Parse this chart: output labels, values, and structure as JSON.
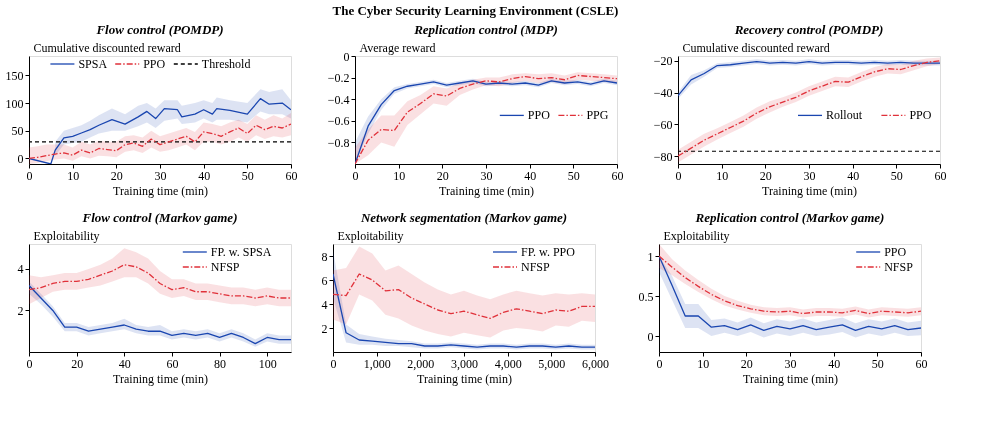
{
  "chart_data": [
    {
      "type": "line",
      "title": "Flow control (POMDP)",
      "xlabel": "Training time (min)",
      "ylabel": "Cumulative discounted reward",
      "annotations": [
        "The Cyber Security Learning Environment (CSLE)"
      ],
      "xlim": [
        0,
        60
      ],
      "xticks": [
        0,
        10,
        20,
        30,
        40,
        50,
        60
      ],
      "ylim": [
        -10,
        185
      ],
      "yticks": [
        0,
        50,
        100,
        150
      ],
      "legend": "top",
      "series": [
        {
          "name": "SPSA",
          "color": "#1a46b0",
          "line_style": "solid",
          "x": [
            0,
            5,
            6,
            8,
            10,
            12,
            14,
            16,
            19,
            22,
            25,
            27,
            29,
            31,
            34,
            35,
            38,
            40,
            42,
            43,
            46,
            50,
            53,
            55,
            58,
            60
          ],
          "values": [
            0,
            -10,
            15,
            37,
            40,
            46,
            52,
            60,
            70,
            62,
            75,
            85,
            72,
            90,
            88,
            75,
            80,
            88,
            80,
            90,
            87,
            80,
            108,
            98,
            100,
            88
          ],
          "lower": [
            null,
            null,
            5,
            25,
            28,
            30,
            38,
            45,
            50,
            50,
            58,
            65,
            55,
            68,
            72,
            62,
            65,
            72,
            65,
            70,
            70,
            65,
            85,
            80,
            80,
            72
          ],
          "upper": [
            null,
            null,
            30,
            50,
            55,
            60,
            68,
            78,
            90,
            80,
            95,
            100,
            90,
            105,
            105,
            95,
            100,
            105,
            100,
            110,
            105,
            100,
            125,
            120,
            125,
            105
          ]
        },
        {
          "name": "PPO",
          "color": "#e0313a",
          "line_style": "dashed",
          "x": [
            0,
            2,
            4,
            6,
            8,
            10,
            12,
            14,
            16,
            18,
            20,
            22,
            24,
            26,
            28,
            30,
            32,
            34,
            36,
            38,
            40,
            42,
            44,
            46,
            48,
            50,
            52,
            54,
            56,
            58,
            60
          ],
          "values": [
            0,
            2,
            5,
            8,
            10,
            6,
            15,
            10,
            18,
            16,
            14,
            25,
            28,
            22,
            35,
            25,
            30,
            35,
            40,
            30,
            48,
            45,
            40,
            48,
            55,
            45,
            60,
            52,
            58,
            55,
            62
          ],
          "lower": [
            -10,
            -8,
            -5,
            -2,
            0,
            -4,
            4,
            0,
            5,
            4,
            2,
            12,
            15,
            10,
            20,
            12,
            15,
            20,
            25,
            15,
            30,
            30,
            25,
            30,
            38,
            30,
            42,
            35,
            40,
            38,
            42
          ],
          "upper": [
            20,
            22,
            25,
            25,
            25,
            20,
            30,
            25,
            32,
            30,
            30,
            40,
            42,
            38,
            50,
            40,
            45,
            50,
            55,
            48,
            65,
            62,
            58,
            65,
            70,
            62,
            78,
            70,
            78,
            72,
            82
          ]
        }
      ],
      "ref_lines": [
        {
          "axis": "y",
          "value": 30,
          "label": "Threshold",
          "color": "#000000",
          "line_style": "dashed"
        }
      ]
    },
    {
      "type": "line",
      "title": "Replication control (MDP)",
      "xlabel": "Training time (min)",
      "ylabel": "Average reward",
      "xlim": [
        0,
        60
      ],
      "xticks": [
        0,
        10,
        20,
        30,
        40,
        50,
        60
      ],
      "ylim": [
        -1,
        0
      ],
      "yticks": [
        0,
        -0.2,
        -0.4,
        -0.6,
        -0.8
      ],
      "legend": "right",
      "x": [
        0,
        3,
        6,
        9,
        12,
        15,
        18,
        21,
        24,
        27,
        30,
        33,
        36,
        39,
        42,
        45,
        48,
        51,
        54,
        57,
        60
      ],
      "series": [
        {
          "name": "PPO",
          "color": "#1a46b0",
          "line_style": "solid",
          "values": [
            -1.0,
            -0.65,
            -0.45,
            -0.32,
            -0.28,
            -0.26,
            -0.24,
            -0.27,
            -0.25,
            -0.23,
            -0.26,
            -0.25,
            -0.26,
            -0.25,
            -0.27,
            -0.23,
            -0.25,
            -0.24,
            -0.26,
            -0.23,
            -0.25
          ],
          "lower": [
            -1.0,
            -0.72,
            -0.5,
            -0.35,
            -0.3,
            -0.28,
            -0.26,
            -0.29,
            -0.27,
            -0.25,
            -0.28,
            -0.27,
            -0.28,
            -0.27,
            -0.29,
            -0.25,
            -0.27,
            -0.26,
            -0.28,
            -0.25,
            -0.27
          ],
          "upper": [
            -0.8,
            -0.56,
            -0.4,
            -0.29,
            -0.26,
            -0.24,
            -0.22,
            -0.25,
            -0.23,
            -0.21,
            -0.24,
            -0.23,
            -0.24,
            -0.23,
            -0.25,
            -0.21,
            -0.23,
            -0.22,
            -0.24,
            -0.21,
            -0.23
          ]
        },
        {
          "name": "PPG",
          "color": "#e0313a",
          "line_style": "dashed",
          "values": [
            -1.0,
            -0.78,
            -0.68,
            -0.69,
            -0.52,
            -0.44,
            -0.35,
            -0.37,
            -0.3,
            -0.26,
            -0.23,
            -0.24,
            -0.21,
            -0.19,
            -0.21,
            -0.2,
            -0.22,
            -0.18,
            -0.19,
            -0.2,
            -0.21
          ],
          "lower": [
            -1.0,
            -0.92,
            -0.8,
            -0.84,
            -0.64,
            -0.54,
            -0.44,
            -0.46,
            -0.36,
            -0.31,
            -0.27,
            -0.28,
            -0.25,
            -0.23,
            -0.25,
            -0.24,
            -0.26,
            -0.22,
            -0.23,
            -0.24,
            -0.25
          ],
          "upper": [
            -0.85,
            -0.68,
            -0.55,
            -0.55,
            -0.42,
            -0.36,
            -0.28,
            -0.3,
            -0.25,
            -0.22,
            -0.2,
            -0.2,
            -0.17,
            -0.16,
            -0.17,
            -0.16,
            -0.18,
            -0.15,
            -0.16,
            -0.17,
            -0.18
          ]
        }
      ]
    },
    {
      "type": "line",
      "title": "Recovery control (POMDP)",
      "xlabel": "Training time (min)",
      "ylabel": "Cumulative discounted reward",
      "xlim": [
        0,
        60
      ],
      "xticks": [
        0,
        10,
        20,
        30,
        40,
        50,
        60
      ],
      "ylim": [
        -85,
        -17
      ],
      "yticks": [
        -20,
        -40,
        -60,
        -80
      ],
      "legend": "right",
      "x": [
        0,
        3,
        6,
        9,
        12,
        15,
        18,
        21,
        24,
        27,
        30,
        33,
        36,
        39,
        42,
        45,
        48,
        51,
        54,
        57,
        60
      ],
      "series": [
        {
          "name": "Rollout",
          "color": "#1a46b0",
          "line_style": "solid",
          "values": [
            -42,
            -32,
            -28,
            -23,
            -22.5,
            -21.5,
            -20.5,
            -21.5,
            -21,
            -21.5,
            -20.5,
            -21.5,
            -21,
            -21,
            -21.5,
            -21,
            -21.5,
            -21,
            -21.5,
            -21.5,
            -21.5
          ],
          "lower": [
            -44,
            -35,
            -30,
            -24.5,
            -24,
            -23,
            -22,
            -23,
            -22.5,
            -23,
            -22,
            -23,
            -22.5,
            -22.5,
            -23,
            -22.5,
            -23,
            -22.5,
            -23,
            -23,
            -23
          ],
          "upper": [
            -40,
            -29,
            -26,
            -21.5,
            -21,
            -20,
            -19,
            -20,
            -19.5,
            -20,
            -19,
            -20,
            -19.5,
            -19.5,
            -20,
            -19.5,
            -20,
            -19.5,
            -20,
            -20,
            -20
          ]
        },
        {
          "name": "PPO",
          "color": "#e0313a",
          "line_style": "dashed",
          "values": [
            -80,
            -75,
            -70,
            -66,
            -62,
            -58,
            -53,
            -49,
            -46,
            -43,
            -39,
            -36,
            -33,
            -33.5,
            -30,
            -27,
            -25,
            -25.5,
            -23,
            -21,
            -20
          ],
          "lower": [
            -84,
            -79,
            -74,
            -69.5,
            -65.5,
            -61.5,
            -56.5,
            -52.5,
            -49,
            -46,
            -42,
            -39,
            -36,
            -36.5,
            -33,
            -30,
            -28,
            -28.5,
            -26,
            -23.5,
            -22
          ],
          "upper": [
            -76,
            -71,
            -66,
            -62.5,
            -58.5,
            -54.5,
            -49.5,
            -45.5,
            -43,
            -40,
            -36,
            -33,
            -30,
            -30.5,
            -27,
            -24,
            -22,
            -22.5,
            -20,
            -18.5,
            -18
          ]
        }
      ],
      "ref_lines": [
        {
          "axis": "y",
          "value": -77,
          "color": "#000000",
          "line_style": "dashed"
        }
      ]
    },
    {
      "type": "line",
      "title": "Flow control (Markov game)",
      "xlabel": "Training time (min)",
      "ylabel": "Exploitability",
      "xlim": [
        0,
        110
      ],
      "xticks": [
        0,
        20,
        40,
        60,
        80,
        100
      ],
      "ylim": [
        0,
        5.2
      ],
      "yticks": [
        2,
        4
      ],
      "legend": "top right",
      "x": [
        0,
        5,
        10,
        15,
        20,
        25,
        30,
        35,
        40,
        45,
        50,
        55,
        60,
        65,
        70,
        75,
        80,
        85,
        90,
        95,
        100,
        105,
        110
      ],
      "series": [
        {
          "name": "FP. w. SPSA",
          "color": "#1a46b0",
          "line_style": "solid",
          "values": [
            3.2,
            2.6,
            2.0,
            1.2,
            1.2,
            1.0,
            1.1,
            1.2,
            1.3,
            1.1,
            1.0,
            1.0,
            0.8,
            0.9,
            0.8,
            0.9,
            0.7,
            0.9,
            0.7,
            0.4,
            0.7,
            0.6,
            0.6
          ],
          "lower": [
            2.8,
            2.3,
            1.7,
            1.0,
            1.0,
            0.8,
            0.9,
            1.0,
            1.1,
            0.9,
            0.8,
            0.8,
            0.6,
            0.7,
            0.6,
            0.7,
            0.5,
            0.7,
            0.5,
            0.25,
            0.5,
            0.4,
            0.4
          ],
          "upper": [
            3.4,
            2.8,
            2.2,
            1.4,
            1.4,
            1.2,
            1.3,
            1.4,
            1.6,
            1.3,
            1.2,
            1.3,
            1.0,
            1.1,
            1.0,
            1.1,
            0.9,
            1.1,
            0.9,
            0.6,
            0.9,
            0.8,
            0.8
          ]
        },
        {
          "name": "NFSP",
          "color": "#e0313a",
          "line_style": "dashed",
          "values": [
            3.0,
            3.1,
            3.3,
            3.4,
            3.4,
            3.5,
            3.7,
            3.9,
            4.2,
            4.1,
            3.8,
            3.3,
            3.0,
            3.1,
            2.9,
            2.9,
            2.8,
            2.7,
            2.7,
            2.6,
            2.7,
            2.6,
            2.6
          ],
          "lower": [
            2.3,
            2.6,
            2.9,
            3.0,
            3.0,
            3.1,
            3.2,
            3.4,
            3.6,
            3.6,
            3.3,
            2.8,
            2.6,
            2.7,
            2.5,
            2.5,
            2.4,
            2.3,
            2.3,
            2.2,
            2.3,
            2.2,
            2.2
          ],
          "upper": [
            3.7,
            3.6,
            3.7,
            3.8,
            3.8,
            4.0,
            4.2,
            4.5,
            5.0,
            4.8,
            4.5,
            3.9,
            3.5,
            3.5,
            3.3,
            3.3,
            3.2,
            3.1,
            3.1,
            3.0,
            3.1,
            3.0,
            3.0
          ]
        }
      ]
    },
    {
      "type": "line",
      "title": "Network segmentation (Markov game)",
      "xlabel": "Training time (min)",
      "ylabel": "Exploitability",
      "xlim": [
        0,
        6000
      ],
      "xticks": [
        0,
        {
          "value": 1000,
          "label": "1,000"
        },
        {
          "value": 2000,
          "label": "2,000"
        },
        {
          "value": 3000,
          "label": "3,000"
        },
        {
          "value": 4000,
          "label": "4,000"
        },
        {
          "value": 5000,
          "label": "5,000"
        },
        {
          "value": 6000,
          "label": "6,000"
        }
      ],
      "ylim": [
        0,
        9
      ],
      "yticks": [
        2,
        4,
        6,
        8
      ],
      "legend": "top right",
      "x": [
        0,
        300,
        600,
        900,
        1200,
        1500,
        1800,
        2100,
        2400,
        2700,
        3000,
        3300,
        3600,
        3900,
        4200,
        4500,
        4800,
        5100,
        5400,
        5700,
        6000
      ],
      "series": [
        {
          "name": "FP. w. PPO",
          "color": "#1a46b0",
          "line_style": "solid",
          "values": [
            6.5,
            1.6,
            1.0,
            0.9,
            0.8,
            0.7,
            0.7,
            0.5,
            0.5,
            0.6,
            0.5,
            0.4,
            0.5,
            0.5,
            0.4,
            0.5,
            0.5,
            0.4,
            0.5,
            0.4,
            0.4
          ],
          "lower": [
            4.5,
            0.8,
            0.6,
            0.6,
            0.5,
            0.5,
            0.4,
            0.3,
            0.3,
            0.4,
            0.3,
            0.2,
            0.3,
            0.3,
            0.2,
            0.3,
            0.3,
            0.2,
            0.3,
            0.2,
            0.2
          ],
          "upper": [
            8.5,
            2.3,
            1.5,
            1.3,
            1.1,
            1.0,
            0.9,
            0.7,
            0.7,
            0.8,
            0.7,
            0.6,
            0.7,
            0.7,
            0.6,
            0.7,
            0.7,
            0.6,
            0.7,
            0.6,
            0.6
          ]
        },
        {
          "name": "NFSP",
          "color": "#e0313a",
          "line_style": "dashed",
          "values": [
            4.8,
            4.7,
            6.5,
            6.0,
            5.1,
            5.2,
            4.5,
            4.0,
            3.5,
            3.2,
            3.4,
            3.1,
            2.8,
            3.3,
            3.6,
            3.4,
            3.2,
            3.5,
            3.4,
            3.8,
            3.8
          ],
          "lower": [
            2.7,
            2.3,
            4.8,
            4.3,
            3.1,
            2.8,
            2.2,
            1.8,
            1.5,
            1.3,
            1.6,
            1.4,
            1.2,
            1.8,
            2.0,
            1.9,
            1.7,
            2.2,
            2.1,
            2.6,
            2.5
          ],
          "upper": [
            6.8,
            7.0,
            8.8,
            8.2,
            6.8,
            7.2,
            6.5,
            5.8,
            5.2,
            4.8,
            5.1,
            4.7,
            4.4,
            4.8,
            5.1,
            4.9,
            4.7,
            4.9,
            4.8,
            4.9,
            4.8
          ]
        }
      ]
    },
    {
      "type": "line",
      "title": "Replication control (Markov game)",
      "xlabel": "Training time (min)",
      "ylabel": "Exploitability",
      "xlim": [
        0,
        60
      ],
      "xticks": [
        0,
        10,
        20,
        30,
        40,
        50,
        60
      ],
      "ylim": [
        -0.2,
        1.15
      ],
      "yticks": [
        0,
        0.5,
        1
      ],
      "legend": "top right",
      "x": [
        0,
        3,
        6,
        9,
        12,
        15,
        18,
        21,
        24,
        27,
        30,
        33,
        36,
        39,
        42,
        45,
        48,
        51,
        54,
        57,
        60
      ],
      "series": [
        {
          "name": "PPO",
          "color": "#1a46b0",
          "line_style": "solid",
          "values": [
            1.0,
            0.63,
            0.25,
            0.25,
            0.11,
            0.13,
            0.08,
            0.14,
            0.07,
            0.12,
            0.09,
            0.13,
            0.08,
            0.11,
            0.14,
            0.07,
            0.12,
            0.09,
            0.13,
            0.08,
            0.1
          ],
          "lower": [
            0.8,
            0.45,
            0.1,
            0.1,
            0.0,
            0.04,
            0.0,
            0.05,
            -0.02,
            0.03,
            0.0,
            0.04,
            0.0,
            0.02,
            0.05,
            -0.02,
            0.03,
            0.0,
            0.04,
            0.0,
            0.01
          ],
          "upper": [
            1.0,
            0.75,
            0.4,
            0.4,
            0.2,
            0.22,
            0.17,
            0.23,
            0.16,
            0.21,
            0.18,
            0.22,
            0.17,
            0.2,
            0.23,
            0.16,
            0.21,
            0.18,
            0.22,
            0.17,
            0.19
          ]
        },
        {
          "name": "NFSP",
          "color": "#e0313a",
          "line_style": "dashed",
          "values": [
            1.0,
            0.86,
            0.73,
            0.62,
            0.52,
            0.44,
            0.38,
            0.34,
            0.31,
            0.3,
            0.31,
            0.28,
            0.3,
            0.3,
            0.29,
            0.32,
            0.28,
            0.31,
            0.3,
            0.29,
            0.31
          ],
          "lower": [
            0.85,
            0.76,
            0.65,
            0.55,
            0.46,
            0.38,
            0.33,
            0.29,
            0.26,
            0.25,
            0.26,
            0.23,
            0.25,
            0.25,
            0.24,
            0.27,
            0.23,
            0.26,
            0.25,
            0.24,
            0.26
          ],
          "upper": [
            1.15,
            0.96,
            0.82,
            0.7,
            0.59,
            0.5,
            0.44,
            0.39,
            0.36,
            0.35,
            0.36,
            0.33,
            0.35,
            0.35,
            0.34,
            0.37,
            0.33,
            0.36,
            0.35,
            0.34,
            0.36
          ]
        }
      ]
    }
  ]
}
